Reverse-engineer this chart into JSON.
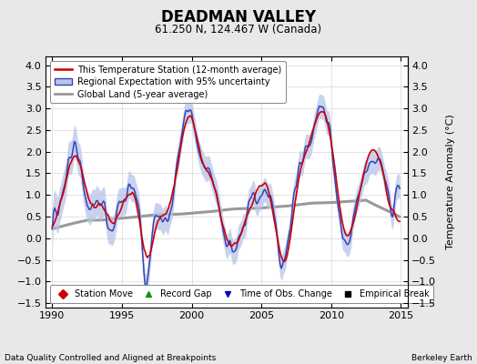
{
  "title": "DEADMAN VALLEY",
  "subtitle": "61.250 N, 124.467 W (Canada)",
  "ylabel": "Temperature Anomaly (°C)",
  "footer_left": "Data Quality Controlled and Aligned at Breakpoints",
  "footer_right": "Berkeley Earth",
  "xlim": [
    1989.5,
    2015.5
  ],
  "ylim": [
    -1.6,
    4.2
  ],
  "yticks": [
    -1.5,
    -1.0,
    -0.5,
    0.0,
    0.5,
    1.0,
    1.5,
    2.0,
    2.5,
    3.0,
    3.5,
    4.0
  ],
  "xticks": [
    1990,
    1995,
    2000,
    2005,
    2010,
    2015
  ],
  "station_color": "#cc0000",
  "regional_color": "#3344bb",
  "regional_fill_color": "#b8c4e8",
  "global_color": "#999999",
  "plot_bg": "#ffffff",
  "fig_bg": "#e8e8e8",
  "legend_items": [
    {
      "label": "This Temperature Station (12-month average)",
      "color": "#cc0000",
      "lw": 1.5
    },
    {
      "label": "Regional Expectation with 95% uncertainty",
      "color": "#3344bb",
      "fill": "#b8c4e8"
    },
    {
      "label": "Global Land (5-year average)",
      "color": "#999999",
      "lw": 2.0
    }
  ],
  "marker_items": [
    {
      "label": "Station Move",
      "marker": "D",
      "color": "#cc0000"
    },
    {
      "label": "Record Gap",
      "marker": "^",
      "color": "#009900"
    },
    {
      "label": "Time of Obs. Change",
      "marker": "v",
      "color": "#0000cc"
    },
    {
      "label": "Empirical Break",
      "marker": "s",
      "color": "#000000"
    }
  ]
}
